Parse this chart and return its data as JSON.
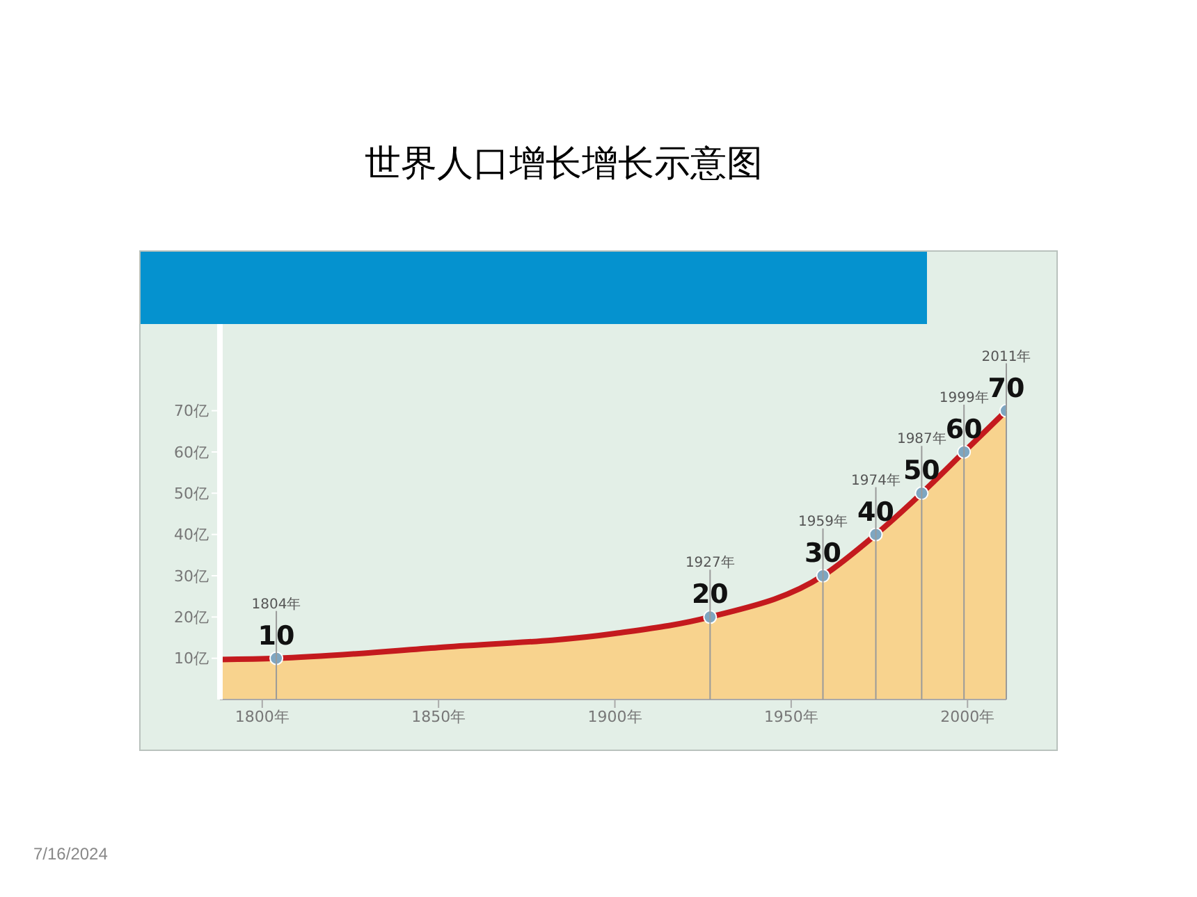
{
  "chart_data": {
    "type": "area",
    "title": "世界人口增长增长示意图",
    "x": [
      1788,
      1804,
      1850,
      1900,
      1927,
      1959,
      1974,
      1987,
      1999,
      2011
    ],
    "series": [
      {
        "color": "#c41a1e",
        "values": [
          9.7,
          10,
          12.6,
          16,
          20,
          30,
          40,
          50,
          60,
          70
        ],
        "value_labels": [
          null,
          "10",
          null,
          null,
          "20",
          "30",
          "40",
          "50",
          "60",
          "70"
        ]
      }
    ],
    "xlim": [
      1788,
      2011
    ],
    "xticks": [
      {
        "value": 1800,
        "label": "1800年"
      },
      {
        "value": 1850,
        "label": "1850年"
      },
      {
        "value": 1900,
        "label": "1900年"
      },
      {
        "value": 1950,
        "label": "1950年"
      },
      {
        "value": 2000,
        "label": "2000年"
      }
    ],
    "ylim": [
      0,
      91
    ],
    "yticks": [
      {
        "value": 10,
        "label": "10亿"
      },
      {
        "value": 20,
        "label": "20亿"
      },
      {
        "value": 30,
        "label": "30亿"
      },
      {
        "value": 40,
        "label": "40亿"
      },
      {
        "value": 50,
        "label": "50亿"
      },
      {
        "value": 60,
        "label": "60亿"
      },
      {
        "value": 70,
        "label": "70亿"
      }
    ],
    "grid": false,
    "legend": false,
    "marker": "circle",
    "annotations": [
      {
        "text": "1804年",
        "x": 1804,
        "y": 10
      },
      {
        "text": "1927年",
        "x": 1927,
        "y": 20
      },
      {
        "text": "1959年",
        "x": 1959,
        "y": 30
      },
      {
        "text": "1974年",
        "x": 1974,
        "y": 40
      },
      {
        "text": "1987年",
        "x": 1987,
        "y": 50
      },
      {
        "text": "1999年",
        "x": 1999,
        "y": 60
      },
      {
        "text": "2011年",
        "x": 2011,
        "y": 70
      },
      "7/16/2024"
    ]
  }
}
